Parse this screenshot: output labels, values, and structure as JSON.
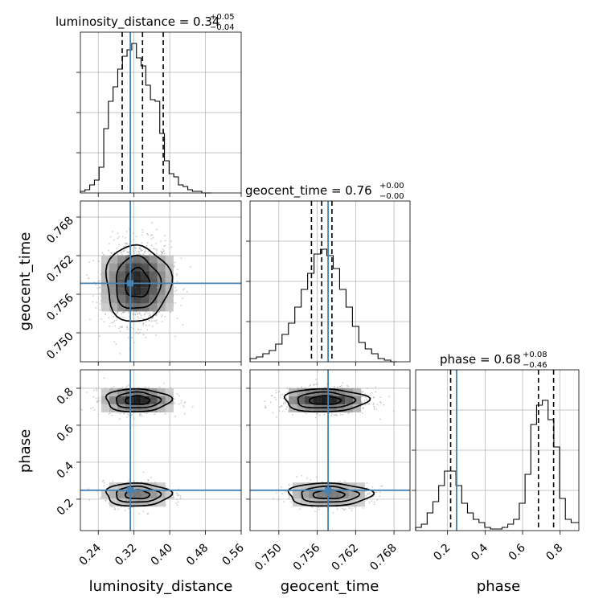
{
  "chart_data": {
    "type": "corner",
    "colors": {
      "truth": "#4682b4",
      "hist": "#000000",
      "grid": "#b0b0b0"
    },
    "parameters": [
      {
        "name": "luminosity_distance",
        "label": "luminosity_distance",
        "title_main": "luminosity_distance = 0.34",
        "title_plus": "+0.05",
        "title_minus": "−0.04",
        "range": [
          0.2,
          0.56
        ],
        "ticks": [
          0.24,
          0.32,
          0.4,
          0.48,
          0.56
        ],
        "tick_labels": [
          "0.24",
          "0.32",
          "0.40",
          "0.48",
          "0.56"
        ],
        "truth": 0.3118,
        "quantiles": [
          0.2936,
          0.3391,
          0.3855
        ],
        "hist": {
          "edges": [
            0.2,
            0.2104,
            0.2209,
            0.2314,
            0.2418,
            0.2523,
            0.2627,
            0.2732,
            0.2836,
            0.2941,
            0.3045,
            0.315,
            0.3255,
            0.3359,
            0.3464,
            0.3568,
            0.3673,
            0.3777,
            0.3882,
            0.3986,
            0.4091,
            0.4195,
            0.43,
            0.4405,
            0.4509,
            0.4614,
            0.4718,
            0.4823,
            0.4927
          ],
          "counts": [
            0.01,
            0.02,
            0.05,
            0.08,
            0.16,
            0.4,
            0.57,
            0.66,
            0.77,
            0.85,
            0.89,
            0.93,
            0.84,
            0.79,
            0.67,
            0.58,
            0.57,
            0.37,
            0.2,
            0.12,
            0.1,
            0.05,
            0.04,
            0.02,
            0.01,
            0.01,
            0.0,
            0.0
          ]
        }
      },
      {
        "name": "geocent_time",
        "label": "geocent_time",
        "title_main": "geocent_time = 0.76",
        "title_plus": "+0.00",
        "title_minus": "−0.00",
        "range": [
          0.7455,
          0.7705
        ],
        "ticks": [
          0.75,
          0.756,
          0.762,
          0.768
        ],
        "tick_labels": [
          "0.750",
          "0.756",
          "0.762",
          "0.768"
        ],
        "truth": 0.7577,
        "quantiles": [
          0.7551,
          0.7567,
          0.7583
        ],
        "hist": {
          "edges": [
            0.7455,
            0.7465,
            0.7475,
            0.7485,
            0.7495,
            0.7505,
            0.7515,
            0.7525,
            0.7535,
            0.7545,
            0.7555,
            0.7565,
            0.7575,
            0.7585,
            0.7595,
            0.7605,
            0.7615,
            0.7625,
            0.7635,
            0.7645,
            0.7655,
            0.7665,
            0.7675,
            0.7685
          ],
          "counts": [
            0.02,
            0.03,
            0.05,
            0.07,
            0.11,
            0.17,
            0.24,
            0.34,
            0.45,
            0.55,
            0.67,
            0.7,
            0.66,
            0.58,
            0.45,
            0.34,
            0.22,
            0.12,
            0.08,
            0.05,
            0.02,
            0.01,
            0.0
          ]
        }
      },
      {
        "name": "phase",
        "label": "phase",
        "title_main": "phase = 0.68",
        "title_plus": "+0.08",
        "title_minus": "−0.46",
        "range": [
          0.03,
          0.9
        ],
        "ticks": [
          0.2,
          0.4,
          0.6,
          0.8
        ],
        "tick_labels": [
          "0.2",
          "0.4",
          "0.6",
          "0.8"
        ],
        "truth": 0.2484,
        "quantiles": [
          0.2165,
          0.6847,
          0.7654
        ],
        "hist": {
          "edges": [
            0.03,
            0.0607,
            0.0914,
            0.1221,
            0.1528,
            0.1835,
            0.2142,
            0.2449,
            0.2756,
            0.3063,
            0.337,
            0.3677,
            0.3984,
            0.4291,
            0.4598,
            0.4905,
            0.5212,
            0.5519,
            0.5826,
            0.6133,
            0.644,
            0.6747,
            0.7054,
            0.7361,
            0.7668,
            0.7975,
            0.8282,
            0.8589,
            0.9
          ],
          "counts": [
            0.02,
            0.04,
            0.11,
            0.18,
            0.28,
            0.37,
            0.37,
            0.28,
            0.17,
            0.11,
            0.07,
            0.05,
            0.02,
            0.01,
            0.01,
            0.02,
            0.04,
            0.07,
            0.17,
            0.35,
            0.66,
            0.78,
            0.81,
            0.69,
            0.52,
            0.2,
            0.07,
            0.05
          ]
        }
      }
    ],
    "pairs": [
      {
        "x": "luminosity_distance",
        "y": "geocent_time",
        "clusters": [
          {
            "cx": 0.3275,
            "cy": 0.7577,
            "sx": 0.05,
            "sy": 0.0043,
            "w": 1.0,
            "core": [
              0.3275,
              0.757
            ]
          }
        ]
      },
      {
        "x": "luminosity_distance",
        "y": "phase",
        "clusters": [
          {
            "cx": 0.3275,
            "cy": 0.735,
            "sx": 0.05,
            "sy": 0.045,
            "w": 0.62,
            "core": [
              0.3275,
              0.735
            ]
          },
          {
            "cx": 0.3275,
            "cy": 0.225,
            "sx": 0.05,
            "sy": 0.045,
            "w": 0.38,
            "core": [
              0.3275,
              0.225
            ]
          }
        ]
      },
      {
        "x": "geocent_time",
        "y": "phase",
        "clusters": [
          {
            "cx": 0.7572,
            "cy": 0.735,
            "sx": 0.0045,
            "sy": 0.045,
            "w": 0.62,
            "core": [
              0.7572,
              0.735
            ]
          },
          {
            "cx": 0.7578,
            "cy": 0.225,
            "sx": 0.0045,
            "sy": 0.045,
            "w": 0.38,
            "core": [
              0.7578,
              0.225
            ]
          }
        ]
      }
    ]
  }
}
